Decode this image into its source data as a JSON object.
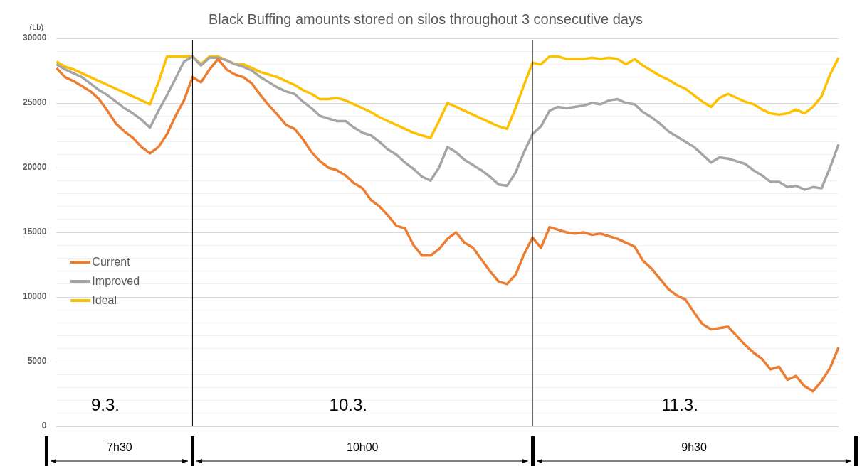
{
  "chart_data": {
    "type": "line",
    "title": "Black Buffing amounts stored on silos throughout 3 consecutive days",
    "ylabel": "(Lb)",
    "categories": [
      null,
      null,
      null,
      null,
      null,
      null,
      null,
      null,
      null,
      null,
      null,
      null,
      null,
      null,
      null,
      null,
      null,
      null,
      null,
      null,
      null,
      null,
      null,
      null,
      null,
      null,
      null,
      null,
      null,
      null,
      null,
      null,
      null,
      null,
      null,
      null,
      null,
      null,
      null,
      null,
      null,
      null,
      null,
      null,
      null,
      null,
      null,
      null,
      null,
      null,
      null,
      null,
      null,
      null,
      null,
      null,
      null,
      null,
      null,
      null,
      null,
      null,
      null,
      null,
      null,
      null,
      null,
      null,
      null,
      null,
      null,
      null,
      null,
      null,
      null,
      null,
      null,
      null,
      null,
      null,
      null,
      null,
      null,
      null,
      null,
      null,
      null,
      null,
      null,
      null,
      null,
      null,
      null
    ],
    "series": [
      {
        "name": "Current",
        "color": "#ed7d31",
        "values": [
          27700,
          27000,
          26700,
          26300,
          25900,
          25300,
          24400,
          23400,
          22800,
          22300,
          21600,
          21100,
          21600,
          22600,
          24000,
          25200,
          27000,
          26600,
          27600,
          28400,
          27600,
          27200,
          27000,
          26500,
          25600,
          24800,
          24100,
          23300,
          23000,
          22200,
          21200,
          20500,
          20000,
          19800,
          19400,
          18800,
          18400,
          17500,
          17000,
          16300,
          15500,
          15300,
          14000,
          13200,
          13200,
          13700,
          14500,
          15000,
          14200,
          13800,
          12900,
          12000,
          11200,
          11000,
          11700,
          13300,
          14600,
          13800,
          15400,
          15200,
          15000,
          14900,
          15000,
          14800,
          14900,
          14700,
          14500,
          14200,
          13900,
          12800,
          12200,
          11400,
          10600,
          10100,
          9800,
          8800,
          7900,
          7500,
          7600,
          7700,
          7000,
          6300,
          5700,
          5200,
          4400,
          4600,
          3600,
          3900,
          3100,
          2700,
          3500,
          4500,
          6100
        ]
      },
      {
        "name": "Improved",
        "color": "#a5a5a5",
        "values": [
          28000,
          27600,
          27300,
          27000,
          26500,
          26000,
          25600,
          25100,
          24600,
          24200,
          23700,
          23100,
          24400,
          25600,
          26900,
          28200,
          28600,
          27900,
          28500,
          28500,
          28300,
          28000,
          27800,
          27500,
          27000,
          26600,
          26200,
          25900,
          25700,
          25100,
          24600,
          24000,
          23800,
          23600,
          23600,
          23100,
          22700,
          22500,
          22000,
          21400,
          21000,
          20400,
          19900,
          19300,
          19000,
          20000,
          21600,
          21200,
          20600,
          20200,
          19800,
          19300,
          18700,
          18600,
          19600,
          21200,
          22600,
          23200,
          24400,
          24700,
          24600,
          24700,
          24800,
          25000,
          24900,
          25200,
          25300,
          25000,
          24900,
          24300,
          23900,
          23400,
          22800,
          22400,
          22000,
          21600,
          21000,
          20400,
          20800,
          20700,
          20500,
          20300,
          19800,
          19400,
          18900,
          18900,
          18500,
          18600,
          18300,
          18500,
          18400,
          20000,
          21800
        ]
      },
      {
        "name": "Ideal",
        "color": "#ffc000",
        "values": [
          28200,
          27800,
          27600,
          27300,
          27000,
          26700,
          26400,
          26100,
          25800,
          25500,
          25200,
          24900,
          26600,
          28600,
          28600,
          28600,
          28600,
          28000,
          28600,
          28600,
          28300,
          28000,
          28000,
          27700,
          27400,
          27200,
          27000,
          26700,
          26400,
          26000,
          25700,
          25300,
          25300,
          25400,
          25200,
          24900,
          24600,
          24300,
          23900,
          23600,
          23300,
          23000,
          22700,
          22500,
          22300,
          23600,
          25000,
          24700,
          24400,
          24100,
          23800,
          23500,
          23200,
          23000,
          24600,
          26400,
          28100,
          28000,
          28600,
          28600,
          28400,
          28400,
          28400,
          28500,
          28400,
          28500,
          28400,
          28000,
          28400,
          27900,
          27500,
          27100,
          26800,
          26400,
          26100,
          25600,
          25100,
          24700,
          25400,
          25700,
          25400,
          25100,
          24900,
          24500,
          24200,
          24100,
          24200,
          24500,
          24200,
          24700,
          25500,
          27200,
          28500
        ]
      }
    ],
    "ylim": [
      0,
      30000
    ],
    "yticks": [
      0,
      {
        "value": 1000,
        "label": null
      },
      {
        "value": 2000,
        "label": null
      },
      {
        "value": 3000,
        "label": null
      },
      {
        "value": 4000,
        "label": null
      },
      5000,
      {
        "value": 6000,
        "label": null
      },
      {
        "value": 7000,
        "label": null
      },
      {
        "value": 8000,
        "label": null
      },
      {
        "value": 9000,
        "label": null
      },
      10000,
      {
        "value": 11000,
        "label": null
      },
      {
        "value": 12000,
        "label": null
      },
      {
        "value": 13000,
        "label": null
      },
      {
        "value": 14000,
        "label": null
      },
      15000,
      {
        "value": 16000,
        "label": null
      },
      {
        "value": 17000,
        "label": null
      },
      {
        "value": 18000,
        "label": null
      },
      {
        "value": 19000,
        "label": null
      },
      20000,
      {
        "value": 21000,
        "label": null
      },
      {
        "value": 22000,
        "label": null
      },
      {
        "value": 23000,
        "label": null
      },
      {
        "value": 24000,
        "label": null
      },
      25000,
      {
        "value": 26000,
        "label": null
      },
      {
        "value": 27000,
        "label": null
      },
      {
        "value": 28000,
        "label": null
      },
      {
        "value": 29000,
        "label": null
      },
      30000
    ],
    "annotations": [
      "9.3.",
      "10.3.",
      "11.3.",
      "7h30",
      "10h00",
      "9h30"
    ],
    "grid": "y",
    "legend": "bottom left",
    "tick_labels": "y",
    "marker": "none",
    "line_style": "solid"
  }
}
